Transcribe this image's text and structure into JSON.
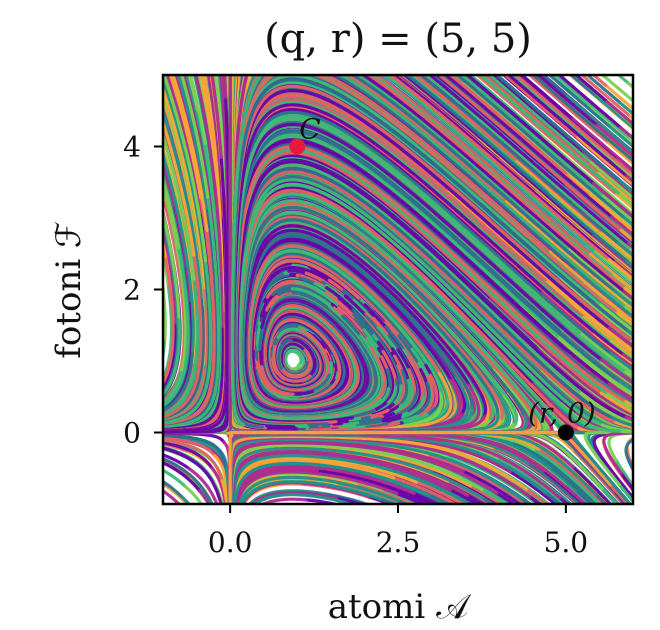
{
  "chart_data": {
    "type": "streamplot",
    "title": "(q, r) = (5, 5)",
    "xlabel": "atomi 𝒜",
    "ylabel": "fotoni ℱ",
    "xlim": [
      -1,
      6
    ],
    "ylim": [
      -1,
      5
    ],
    "xticks": [
      {
        "value": 0.0,
        "label": "0.0"
      },
      {
        "value": 2.5,
        "label": "2.5"
      },
      {
        "value": 5.0,
        "label": "5.0"
      }
    ],
    "yticks": [
      {
        "value": 0,
        "label": "0"
      },
      {
        "value": 2,
        "label": "2"
      },
      {
        "value": 4,
        "label": "4"
      }
    ],
    "grid": false,
    "points": [
      {
        "label": "C",
        "x": 1.0,
        "y": 4.0,
        "color": "#e8193c"
      },
      {
        "label": "(r, 0)",
        "x": 5.0,
        "y": 0.0,
        "color": "#000000"
      }
    ],
    "stream_colors": [
      "#6a00a8",
      "#b12a90",
      "#e16462",
      "#fca636",
      "#2c728e",
      "#21918c",
      "#3bbc75",
      "#7ad151"
    ]
  }
}
